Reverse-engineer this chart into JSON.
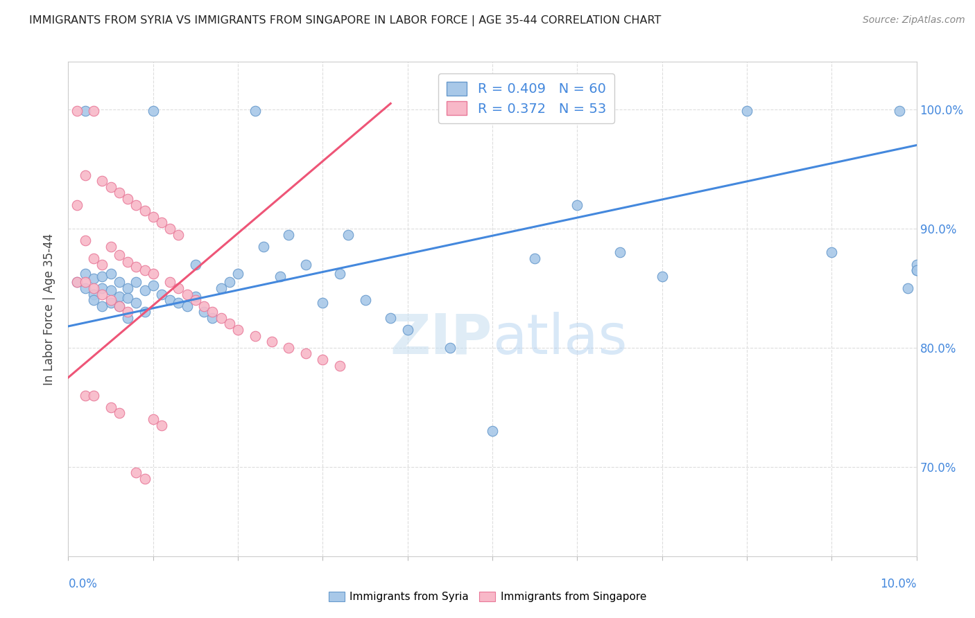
{
  "title": "IMMIGRANTS FROM SYRIA VS IMMIGRANTS FROM SINGAPORE IN LABOR FORCE | AGE 35-44 CORRELATION CHART",
  "source": "Source: ZipAtlas.com",
  "ylabel": "In Labor Force | Age 35-44",
  "ytick_values": [
    0.7,
    0.8,
    0.9,
    1.0
  ],
  "xlim": [
    0.0,
    0.1
  ],
  "ylim": [
    0.625,
    1.04
  ],
  "syria_color": "#a8c8e8",
  "syria_edge": "#6699cc",
  "singapore_color": "#f8b8c8",
  "singapore_edge": "#e87898",
  "trend_syria_color": "#4488dd",
  "trend_singapore_color": "#ee5577",
  "background_color": "#ffffff",
  "grid_color": "#dddddd",
  "tick_color": "#4488dd",
  "syria_R": 0.409,
  "syria_N": 60,
  "singapore_R": 0.372,
  "singapore_N": 53,
  "syria_trend_x": [
    0.0,
    0.1
  ],
  "syria_trend_y": [
    0.818,
    0.97
  ],
  "singapore_trend_x": [
    0.0,
    0.038
  ],
  "singapore_trend_y": [
    0.775,
    1.005
  ],
  "syria_x": [
    0.001,
    0.002,
    0.002,
    0.002,
    0.003,
    0.003,
    0.003,
    0.004,
    0.004,
    0.004,
    0.005,
    0.005,
    0.005,
    0.006,
    0.006,
    0.006,
    0.007,
    0.007,
    0.007,
    0.008,
    0.008,
    0.009,
    0.009,
    0.01,
    0.01,
    0.011,
    0.012,
    0.013,
    0.014,
    0.015,
    0.015,
    0.016,
    0.017,
    0.018,
    0.019,
    0.02,
    0.022,
    0.023,
    0.025,
    0.026,
    0.028,
    0.03,
    0.032,
    0.033,
    0.035,
    0.038,
    0.04,
    0.045,
    0.05,
    0.055,
    0.06,
    0.065,
    0.07,
    0.08,
    0.09,
    0.098,
    0.099,
    0.1,
    0.1,
    0.1
  ],
  "syria_y": [
    0.855,
    0.999,
    0.862,
    0.85,
    0.845,
    0.858,
    0.84,
    0.86,
    0.835,
    0.85,
    0.862,
    0.848,
    0.838,
    0.855,
    0.843,
    0.835,
    0.85,
    0.842,
    0.825,
    0.855,
    0.838,
    0.848,
    0.83,
    0.999,
    0.852,
    0.845,
    0.84,
    0.838,
    0.835,
    0.843,
    0.87,
    0.83,
    0.825,
    0.85,
    0.855,
    0.862,
    0.999,
    0.885,
    0.86,
    0.895,
    0.87,
    0.838,
    0.862,
    0.895,
    0.84,
    0.825,
    0.815,
    0.8,
    0.73,
    0.875,
    0.92,
    0.88,
    0.86,
    0.999,
    0.88,
    0.999,
    0.85,
    0.865,
    0.87,
    0.865
  ],
  "singapore_x": [
    0.001,
    0.001,
    0.001,
    0.002,
    0.002,
    0.002,
    0.002,
    0.003,
    0.003,
    0.003,
    0.003,
    0.004,
    0.004,
    0.004,
    0.005,
    0.005,
    0.005,
    0.005,
    0.006,
    0.006,
    0.006,
    0.006,
    0.007,
    0.007,
    0.007,
    0.008,
    0.008,
    0.008,
    0.009,
    0.009,
    0.009,
    0.01,
    0.01,
    0.01,
    0.011,
    0.011,
    0.012,
    0.012,
    0.013,
    0.013,
    0.014,
    0.015,
    0.016,
    0.017,
    0.018,
    0.019,
    0.02,
    0.022,
    0.024,
    0.026,
    0.028,
    0.03,
    0.032
  ],
  "singapore_y": [
    0.92,
    0.999,
    0.855,
    0.945,
    0.89,
    0.855,
    0.76,
    0.999,
    0.875,
    0.85,
    0.76,
    0.94,
    0.87,
    0.845,
    0.935,
    0.885,
    0.84,
    0.75,
    0.93,
    0.878,
    0.835,
    0.745,
    0.925,
    0.872,
    0.83,
    0.92,
    0.868,
    0.695,
    0.915,
    0.865,
    0.69,
    0.91,
    0.862,
    0.74,
    0.905,
    0.735,
    0.9,
    0.855,
    0.895,
    0.85,
    0.845,
    0.84,
    0.835,
    0.83,
    0.825,
    0.82,
    0.815,
    0.81,
    0.805,
    0.8,
    0.795,
    0.79,
    0.785
  ]
}
